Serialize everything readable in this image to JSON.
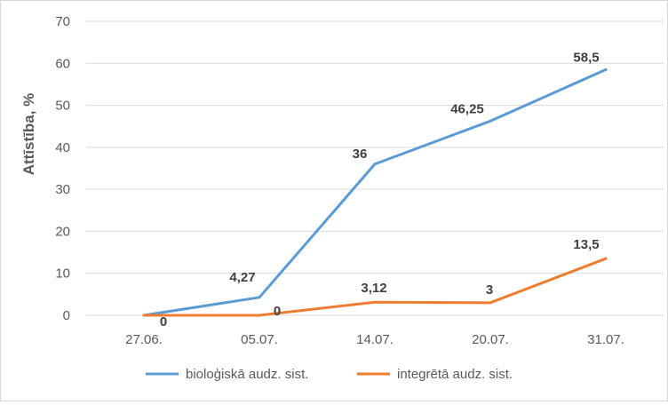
{
  "chart_data": {
    "type": "line",
    "title": "",
    "xlabel": "",
    "ylabel": "Attīstība, %",
    "categories": [
      "27.06.",
      "05.07.",
      "14.07.",
      "20.07.",
      "31.07."
    ],
    "ylim": [
      0,
      70
    ],
    "yticks": [
      "0",
      "10",
      "20",
      "30",
      "40",
      "50",
      "60",
      "70"
    ],
    "grid": true,
    "legend_position": "bottom",
    "series": [
      {
        "name": "bioloģiskā audz. sist.",
        "color": "#5b9bd5",
        "values": [
          0,
          4.27,
          36,
          46.25,
          58.5
        ],
        "labels": [
          "0",
          "4,27",
          "36",
          "46,25",
          "58,5"
        ]
      },
      {
        "name": "integrētā audz. sist.",
        "color": "#ed7d31",
        "values": [
          0,
          0,
          3.12,
          3,
          13.5
        ],
        "labels": [
          "",
          "0",
          "3,12",
          "3",
          "13,5"
        ]
      }
    ]
  }
}
